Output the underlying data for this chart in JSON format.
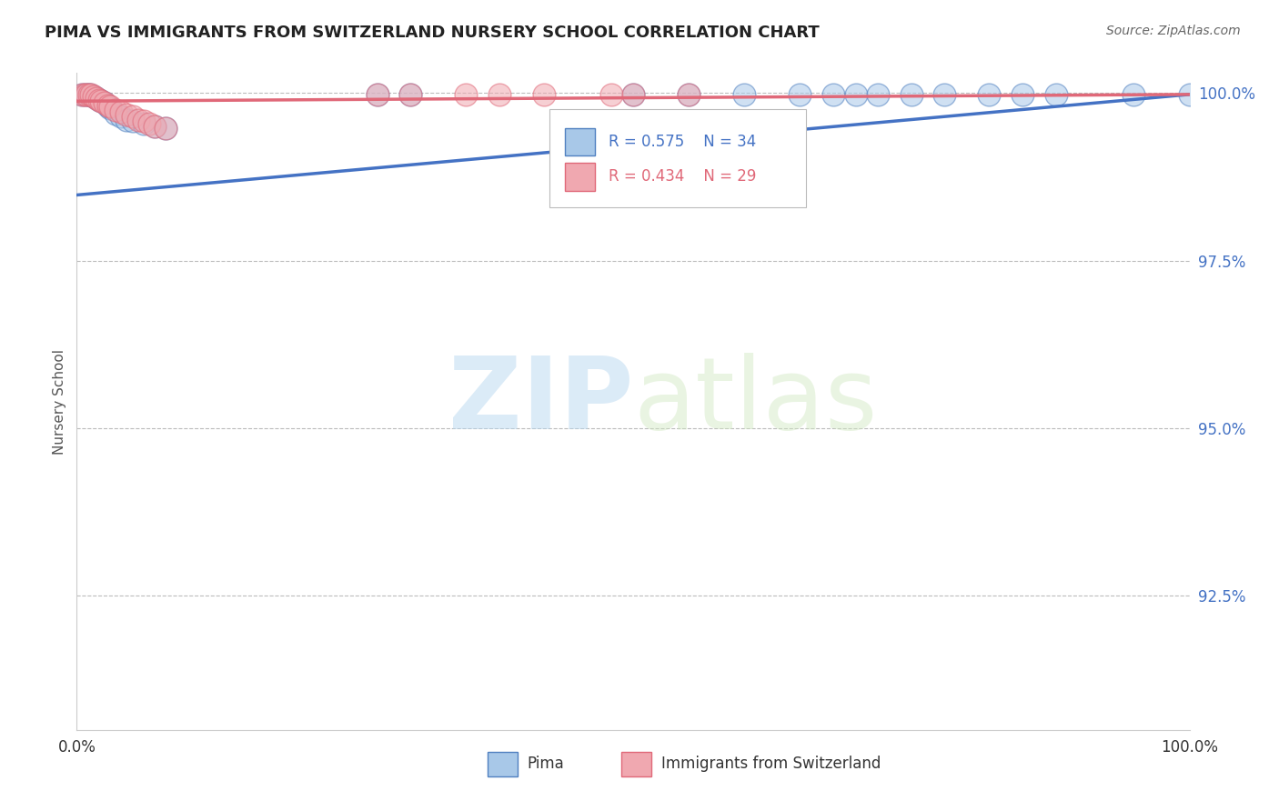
{
  "title": "PIMA VS IMMIGRANTS FROM SWITZERLAND NURSERY SCHOOL CORRELATION CHART",
  "source": "Source: ZipAtlas.com",
  "ylabel": "Nursery School",
  "xlim": [
    0,
    1
  ],
  "ylim": [
    0.905,
    1.003
  ],
  "yticks": [
    0.925,
    0.95,
    0.975,
    1.0
  ],
  "ytick_labels": [
    "92.5%",
    "95.0%",
    "97.5%",
    "100.0%"
  ],
  "xticks": [
    0.0,
    0.25,
    0.5,
    0.75,
    1.0
  ],
  "xtick_labels": [
    "0.0%",
    "",
    "",
    "",
    "100.0%"
  ],
  "legend_r_blue": "R = 0.575",
  "legend_n_blue": "N = 34",
  "legend_r_pink": "R = 0.434",
  "legend_n_pink": "N = 29",
  "blue_color": "#A8C8E8",
  "pink_color": "#F0A8B0",
  "blue_edge_color": "#5080C0",
  "pink_edge_color": "#E06878",
  "blue_line_color": "#4472C4",
  "pink_line_color": "#D05060",
  "blue_scatter_x": [
    0.005,
    0.008,
    0.01,
    0.012,
    0.015,
    0.018,
    0.02,
    0.022,
    0.025,
    0.028,
    0.03,
    0.035,
    0.04,
    0.045,
    0.05,
    0.06,
    0.07,
    0.08,
    0.27,
    0.3,
    0.5,
    0.55,
    0.6,
    0.65,
    0.68,
    0.7,
    0.72,
    0.75,
    0.78,
    0.82,
    0.85,
    0.88,
    0.95,
    1.0
  ],
  "blue_scatter_y": [
    0.9998,
    0.9998,
    0.9998,
    0.9998,
    0.9995,
    0.9993,
    0.999,
    0.9988,
    0.9985,
    0.998,
    0.9978,
    0.997,
    0.9965,
    0.996,
    0.9958,
    0.9955,
    0.995,
    0.9948,
    0.9998,
    0.9998,
    0.9998,
    0.9998,
    0.9998,
    0.9998,
    0.9998,
    0.9998,
    0.9998,
    0.9998,
    0.9998,
    0.9998,
    0.9998,
    0.9998,
    0.9998,
    0.9998
  ],
  "pink_scatter_x": [
    0.005,
    0.007,
    0.009,
    0.011,
    0.013,
    0.015,
    0.018,
    0.02,
    0.022,
    0.025,
    0.028,
    0.03,
    0.035,
    0.04,
    0.045,
    0.05,
    0.055,
    0.06,
    0.065,
    0.07,
    0.08,
    0.27,
    0.3,
    0.35,
    0.38,
    0.42,
    0.48,
    0.5,
    0.55
  ],
  "pink_scatter_y": [
    0.9998,
    0.9998,
    0.9998,
    0.9998,
    0.9998,
    0.9995,
    0.9993,
    0.999,
    0.9988,
    0.9985,
    0.9982,
    0.998,
    0.9975,
    0.9972,
    0.9968,
    0.9965,
    0.996,
    0.9958,
    0.9955,
    0.995,
    0.9948,
    0.9998,
    0.9998,
    0.9998,
    0.9998,
    0.9998,
    0.9998,
    0.9998,
    0.9998
  ],
  "blue_line_start_y": 0.9848,
  "blue_line_end_y": 0.9998,
  "pink_line_start_y": 0.9988,
  "pink_line_end_y": 0.9998,
  "watermark_zip": "ZIP",
  "watermark_atlas": "atlas",
  "background_color": "#FFFFFF",
  "grid_color": "#BBBBBB",
  "legend_label_blue": "Pima",
  "legend_label_pink": "Immigrants from Switzerland"
}
